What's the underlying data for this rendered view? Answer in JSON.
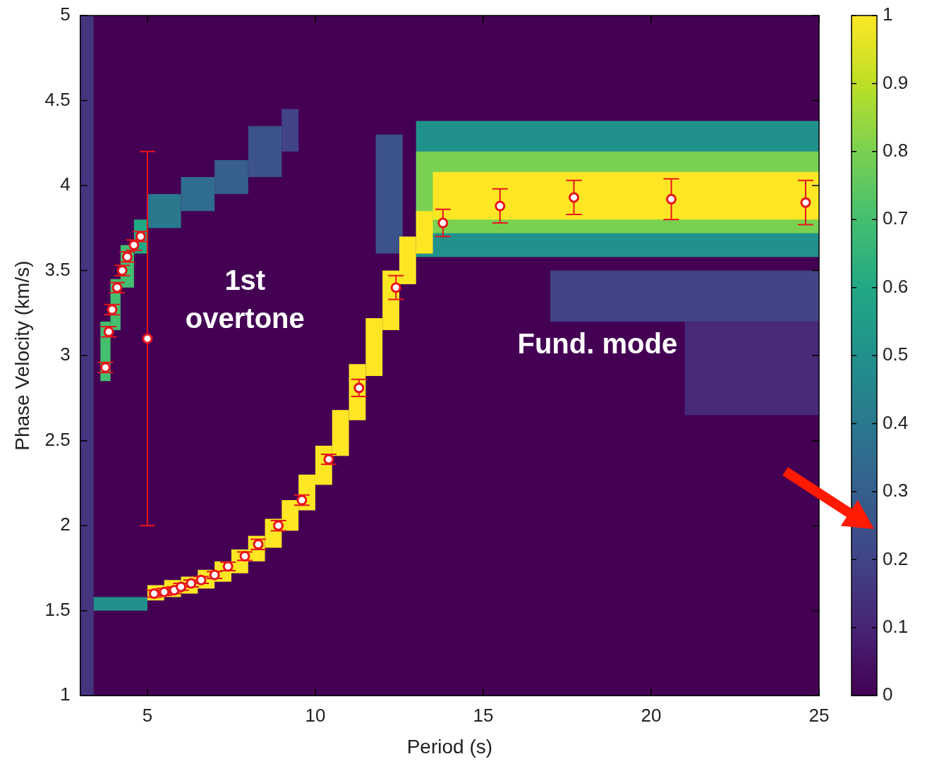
{
  "chart_data": {
    "type": "scatter",
    "x_label": "Period (s)",
    "y_label": "Phase Velocity (km/s)",
    "xlim": [
      3,
      25
    ],
    "xticks": [
      5,
      10,
      15,
      20,
      25
    ],
    "ylim": [
      1,
      5
    ],
    "yticks": [
      1,
      1.5,
      2,
      2.5,
      3,
      3.5,
      4,
      4.5,
      5
    ],
    "grid": false,
    "series": [
      {
        "name": "1st overtone",
        "color": "#e8141b",
        "marker": "circle",
        "x": [
          3.75,
          3.85,
          3.95,
          4.1,
          4.25,
          4.4,
          4.6,
          4.8,
          5.0
        ],
        "values": [
          2.93,
          3.14,
          3.27,
          3.4,
          3.5,
          3.58,
          3.65,
          3.7,
          3.1
        ],
        "errors": [
          0.03,
          0.03,
          0.03,
          0.03,
          0.03,
          0.03,
          0.03,
          0.03,
          1.1
        ]
      },
      {
        "name": "Fund. mode",
        "color": "#e8141b",
        "marker": "circle",
        "x": [
          5.2,
          5.5,
          5.8,
          6.0,
          6.3,
          6.6,
          7.0,
          7.4,
          7.9,
          8.3,
          8.9,
          9.6,
          10.4,
          11.3,
          12.4,
          13.8,
          15.5,
          17.7,
          20.6,
          24.6
        ],
        "values": [
          1.6,
          1.61,
          1.62,
          1.64,
          1.66,
          1.68,
          1.71,
          1.76,
          1.82,
          1.89,
          2.0,
          2.15,
          2.39,
          2.81,
          3.4,
          3.78,
          3.88,
          3.93,
          3.92,
          3.9
        ],
        "errors": [
          0.02,
          0.02,
          0.02,
          0.02,
          0.02,
          0.02,
          0.02,
          0.025,
          0.025,
          0.03,
          0.03,
          0.03,
          0.03,
          0.05,
          0.07,
          0.08,
          0.1,
          0.1,
          0.12,
          0.13
        ]
      }
    ],
    "heatmap": {
      "cells": [
        {
          "x": [
            3,
            3.4
          ],
          "y": [
            1,
            5
          ],
          "value": 0.15
        },
        {
          "x": [
            3.4,
            5
          ],
          "y": [
            1.5,
            1.58
          ],
          "value": 0.5
        },
        {
          "x": [
            13,
            25
          ],
          "y": [
            3.58,
            4.38
          ],
          "value": 0.5
        },
        {
          "x": [
            13,
            25
          ],
          "y": [
            3.72,
            4.2
          ],
          "value": 0.8
        },
        {
          "x": [
            13.5,
            25
          ],
          "y": [
            3.8,
            4.08
          ],
          "value": 1
        },
        {
          "x": [
            17,
            25
          ],
          "y": [
            3.2,
            3.5
          ],
          "value": 0.2
        },
        {
          "x": [
            21,
            25
          ],
          "y": [
            2.65,
            3.2
          ],
          "value": 0.12
        },
        {
          "x": [
            11.8,
            12.6
          ],
          "y": [
            3.6,
            4.3
          ],
          "value": 0.25
        },
        {
          "x": [
            3.6,
            3.9
          ],
          "y": [
            2.85,
            3.2
          ],
          "value": 0.7
        },
        {
          "x": [
            3.9,
            4.2
          ],
          "y": [
            3.15,
            3.45
          ],
          "value": 0.7
        },
        {
          "x": [
            4.2,
            4.6
          ],
          "y": [
            3.4,
            3.65
          ],
          "value": 0.7
        },
        {
          "x": [
            4.6,
            5.0
          ],
          "y": [
            3.6,
            3.8
          ],
          "value": 0.6
        },
        {
          "x": [
            5.0,
            6.0
          ],
          "y": [
            3.75,
            3.95
          ],
          "value": 0.4
        },
        {
          "x": [
            6.0,
            7.0
          ],
          "y": [
            3.85,
            4.05
          ],
          "value": 0.35
        },
        {
          "x": [
            7.0,
            8.0
          ],
          "y": [
            3.95,
            4.15
          ],
          "value": 0.3
        },
        {
          "x": [
            8.0,
            9.0
          ],
          "y": [
            4.05,
            4.35
          ],
          "value": 0.25
        },
        {
          "x": [
            9.0,
            9.5
          ],
          "y": [
            4.2,
            4.45
          ],
          "value": 0.2
        },
        {
          "x": [
            5.0,
            5.5
          ],
          "y": [
            1.56,
            1.65
          ],
          "value": 1
        },
        {
          "x": [
            5.5,
            6.0
          ],
          "y": [
            1.58,
            1.68
          ],
          "value": 1
        },
        {
          "x": [
            6.0,
            6.5
          ],
          "y": [
            1.6,
            1.7
          ],
          "value": 1
        },
        {
          "x": [
            6.5,
            7.0
          ],
          "y": [
            1.63,
            1.74
          ],
          "value": 1
        },
        {
          "x": [
            7.0,
            7.5
          ],
          "y": [
            1.67,
            1.79
          ],
          "value": 1
        },
        {
          "x": [
            7.5,
            8.0
          ],
          "y": [
            1.72,
            1.86
          ],
          "value": 1
        },
        {
          "x": [
            8.0,
            8.5
          ],
          "y": [
            1.79,
            1.94
          ],
          "value": 1
        },
        {
          "x": [
            8.5,
            9.0
          ],
          "y": [
            1.87,
            2.04
          ],
          "value": 1
        },
        {
          "x": [
            9.0,
            9.5
          ],
          "y": [
            1.97,
            2.15
          ],
          "value": 1
        },
        {
          "x": [
            9.5,
            10.0
          ],
          "y": [
            2.09,
            2.3
          ],
          "value": 1
        },
        {
          "x": [
            10.0,
            10.5
          ],
          "y": [
            2.24,
            2.47
          ],
          "value": 1
        },
        {
          "x": [
            10.5,
            11.0
          ],
          "y": [
            2.41,
            2.68
          ],
          "value": 1
        },
        {
          "x": [
            11.0,
            11.5
          ],
          "y": [
            2.62,
            2.95
          ],
          "value": 1
        },
        {
          "x": [
            11.5,
            12.0
          ],
          "y": [
            2.88,
            3.22
          ],
          "value": 1
        },
        {
          "x": [
            12.0,
            12.5
          ],
          "y": [
            3.15,
            3.5
          ],
          "value": 1
        },
        {
          "x": [
            12.5,
            13.0
          ],
          "y": [
            3.42,
            3.7
          ],
          "value": 1
        },
        {
          "x": [
            13.0,
            13.5
          ],
          "y": [
            3.6,
            3.85
          ],
          "value": 1
        }
      ]
    },
    "colorbar": {
      "range": [
        0,
        1
      ],
      "ticks": [
        0,
        0.1,
        0.2,
        0.3,
        0.4,
        0.5,
        0.6,
        0.7,
        0.8,
        0.9,
        1
      ]
    }
  }
}
